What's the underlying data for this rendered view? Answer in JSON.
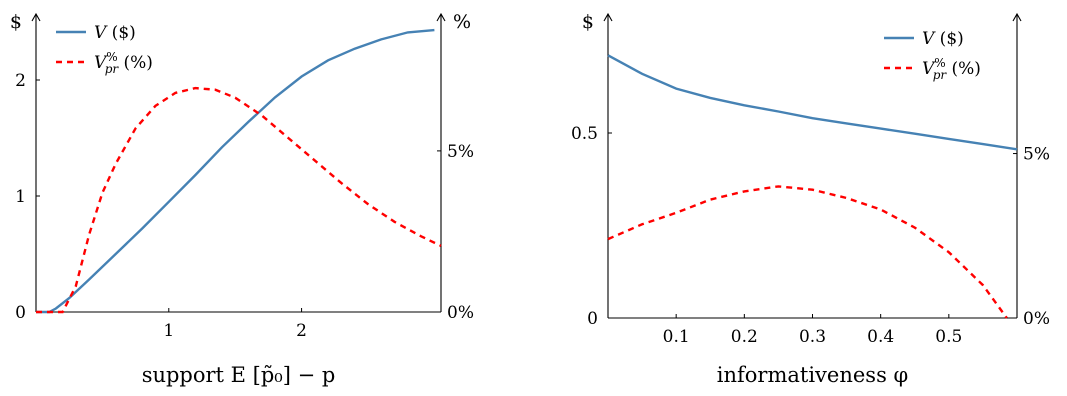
{
  "chart_data": [
    {
      "type": "line",
      "xlabel": "support E [p̃₀] − p",
      "ylabel_left": "$",
      "ylabel_right": "%",
      "xlim": [
        0,
        3.05
      ],
      "ylim_left": [
        0,
        2.5
      ],
      "ylim_right_pct": [
        0,
        9.0
      ],
      "x_ticks": [
        {
          "v": 1,
          "label": "1"
        },
        {
          "v": 2,
          "label": "2"
        }
      ],
      "y_left_ticks": [
        {
          "v": 0,
          "label": "0"
        },
        {
          "v": 1,
          "label": "1"
        },
        {
          "v": 2,
          "label": "2"
        }
      ],
      "y_right_ticks": [
        {
          "v": 0,
          "label": "0%"
        },
        {
          "v": 5,
          "label": "5%"
        }
      ],
      "legend_position": "top-left",
      "series": [
        {
          "name": "V ($)",
          "axis": "left",
          "color": "#4682b4",
          "dash": "solid",
          "points": [
            [
              0,
              0
            ],
            [
              0.05,
              0
            ],
            [
              0.1,
              0
            ],
            [
              0.15,
              0.03
            ],
            [
              0.25,
              0.12
            ],
            [
              0.4,
              0.28
            ],
            [
              0.6,
              0.5
            ],
            [
              0.8,
              0.72
            ],
            [
              1.0,
              0.95
            ],
            [
              1.2,
              1.18
            ],
            [
              1.4,
              1.42
            ],
            [
              1.6,
              1.64
            ],
            [
              1.8,
              1.85
            ],
            [
              2.0,
              2.03
            ],
            [
              2.2,
              2.17
            ],
            [
              2.4,
              2.27
            ],
            [
              2.6,
              2.35
            ],
            [
              2.8,
              2.41
            ],
            [
              3.0,
              2.43
            ]
          ]
        },
        {
          "name": "V_pr^% (%)",
          "axis": "right",
          "color": "#ff0000",
          "dash": "dashed",
          "points": [
            [
              0,
              0
            ],
            [
              0.1,
              0
            ],
            [
              0.2,
              0.0
            ],
            [
              0.3,
              0.8
            ],
            [
              0.4,
              2.4
            ],
            [
              0.5,
              3.7
            ],
            [
              0.6,
              4.6
            ],
            [
              0.75,
              5.7
            ],
            [
              0.9,
              6.4
            ],
            [
              1.05,
              6.8
            ],
            [
              1.2,
              6.95
            ],
            [
              1.35,
              6.9
            ],
            [
              1.5,
              6.65
            ],
            [
              1.7,
              6.1
            ],
            [
              1.9,
              5.4
            ],
            [
              2.1,
              4.7
            ],
            [
              2.3,
              4.0
            ],
            [
              2.5,
              3.35
            ],
            [
              2.7,
              2.8
            ],
            [
              2.9,
              2.35
            ],
            [
              3.05,
              2.05
            ]
          ]
        }
      ]
    },
    {
      "type": "line",
      "xlabel": "informativeness φ",
      "ylabel_left": "$",
      "ylabel_right": "",
      "xlim": [
        0,
        0.6
      ],
      "ylim_left": [
        0,
        0.8
      ],
      "ylim_right_pct": [
        0,
        9.0
      ],
      "x_ticks": [
        {
          "v": 0.1,
          "label": "0.1"
        },
        {
          "v": 0.2,
          "label": "0.2"
        },
        {
          "v": 0.3,
          "label": "0.3"
        },
        {
          "v": 0.4,
          "label": "0.4"
        },
        {
          "v": 0.5,
          "label": "0.5"
        }
      ],
      "y_left_ticks": [
        {
          "v": 0,
          "label": "0"
        },
        {
          "v": 0.5,
          "label": "0.5"
        }
      ],
      "y_right_ticks": [
        {
          "v": 0,
          "label": "0%"
        },
        {
          "v": 5,
          "label": "5%"
        }
      ],
      "legend_position": "top-right",
      "series": [
        {
          "name": "V ($)",
          "axis": "left",
          "color": "#4682b4",
          "dash": "solid",
          "points": [
            [
              0.0,
              0.71
            ],
            [
              0.05,
              0.66
            ],
            [
              0.1,
              0.62
            ],
            [
              0.15,
              0.595
            ],
            [
              0.2,
              0.575
            ],
            [
              0.25,
              0.558
            ],
            [
              0.3,
              0.54
            ],
            [
              0.35,
              0.526
            ],
            [
              0.4,
              0.512
            ],
            [
              0.45,
              0.498
            ],
            [
              0.5,
              0.484
            ],
            [
              0.55,
              0.47
            ],
            [
              0.6,
              0.456
            ]
          ]
        },
        {
          "name": "V_pr^% (%)",
          "axis": "right",
          "color": "#ff0000",
          "dash": "dashed",
          "points": [
            [
              0.0,
              2.4
            ],
            [
              0.05,
              2.85
            ],
            [
              0.1,
              3.2
            ],
            [
              0.15,
              3.6
            ],
            [
              0.2,
              3.85
            ],
            [
              0.25,
              4.0
            ],
            [
              0.3,
              3.9
            ],
            [
              0.35,
              3.65
            ],
            [
              0.4,
              3.3
            ],
            [
              0.45,
              2.75
            ],
            [
              0.5,
              2.0
            ],
            [
              0.55,
              1.0
            ],
            [
              0.585,
              0.0
            ]
          ]
        }
      ]
    }
  ]
}
